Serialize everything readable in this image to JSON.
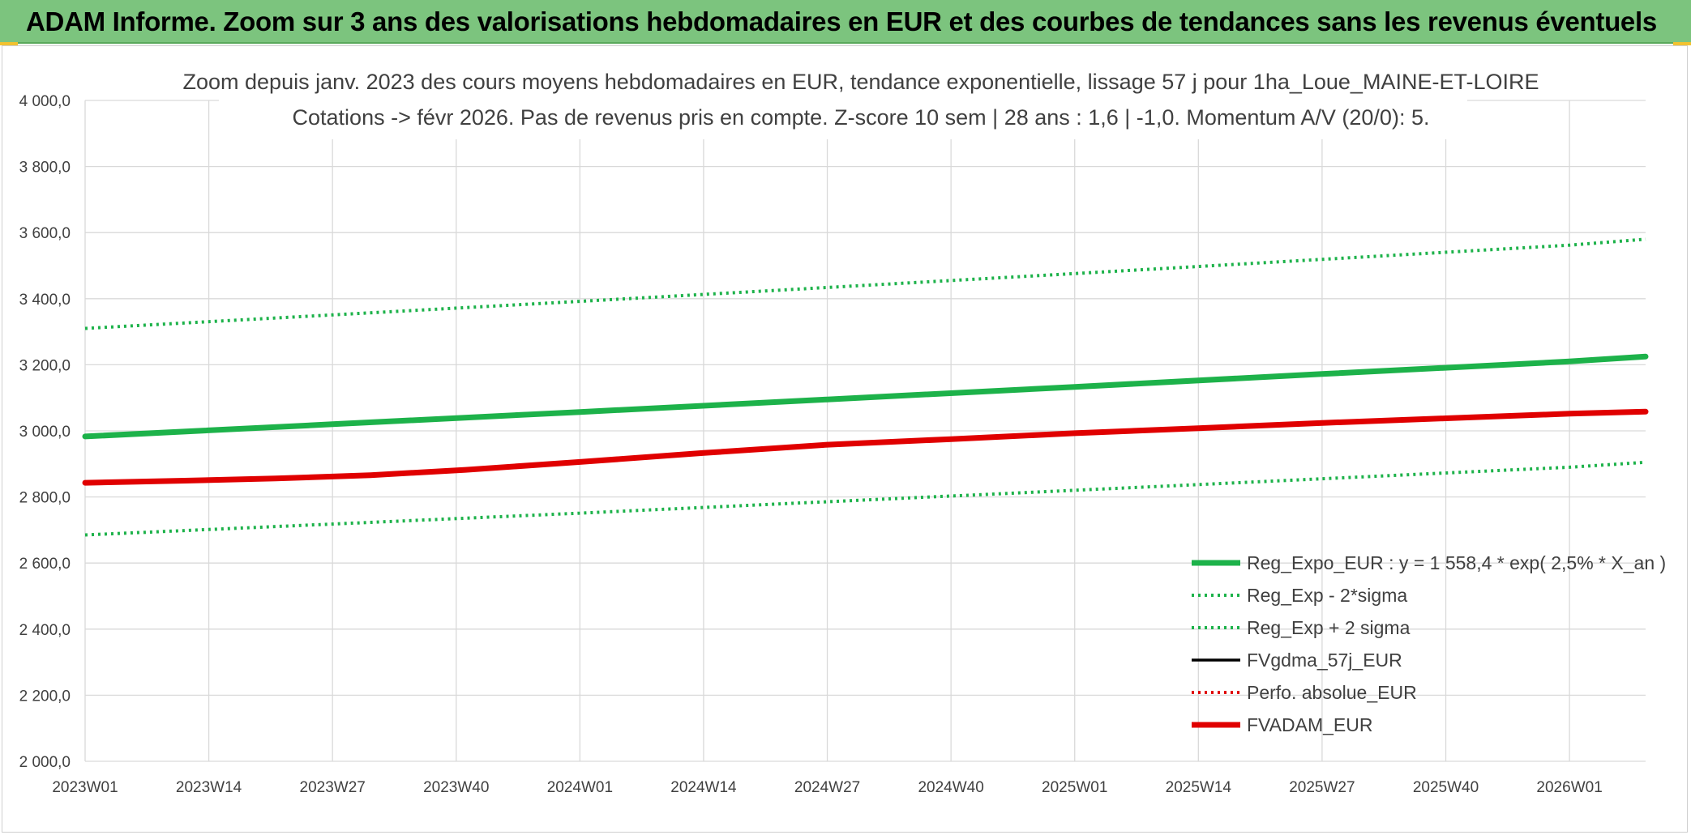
{
  "header": {
    "title": "ADAM Informe. Zoom sur 3 ans des valorisations hebdomadaires en EUR et des courbes de tendances sans les revenus éventuels"
  },
  "chart_data": {
    "type": "line",
    "title": "Zoom depuis janv. 2023 des cours moyens hebdomadaires en EUR, tendance exponentielle, lissage 57 j pour 1ha_Loue_MAINE-ET-LOIRE",
    "subtitle": "Cotations -> févr 2026. Pas de revenus pris en compte. Z-score 10 sem | 28 ans : 1,6 | -1,0. Momentum A/V (20/0): 5.",
    "xlabel": "",
    "ylabel": "",
    "ylim": [
      2000,
      4000
    ],
    "y_ticks": [
      2000,
      2200,
      2400,
      2600,
      2800,
      3000,
      3200,
      3400,
      3600,
      3800,
      4000
    ],
    "y_tick_labels": [
      "2 000,0",
      "2 200,0",
      "2 400,0",
      "2 600,0",
      "2 800,0",
      "3 000,0",
      "3 200,0",
      "3 400,0",
      "3 600,0",
      "3 800,0",
      "4 000,0"
    ],
    "x_tick_labels": [
      "2023W01",
      "2023W14",
      "2023W27",
      "2023W40",
      "2024W01",
      "2024W14",
      "2024W27",
      "2024W40",
      "2025W01",
      "2025W14",
      "2025W27",
      "2025W40",
      "2026W01"
    ],
    "x_tick_week_index": [
      0,
      13,
      26,
      39,
      52,
      65,
      78,
      91,
      104,
      117,
      130,
      143,
      156
    ],
    "x_range_weeks": [
      0,
      164
    ],
    "grid": true,
    "legend_position": "bottom-right",
    "series": [
      {
        "name": "Reg_Expo_EUR : y = 1 558,4 * exp( 2,5% *  X_an )",
        "color": "#1db24a",
        "style": "solid-thick",
        "x": [
          0,
          26,
          52,
          78,
          104,
          130,
          156,
          164
        ],
        "values": [
          2983,
          3020,
          3057,
          3095,
          3133,
          3172,
          3210,
          3225
        ]
      },
      {
        "name": "Reg_Exp - 2*sigma",
        "color": "#1db24a",
        "style": "dotted",
        "x": [
          0,
          52,
          104,
          156,
          164
        ],
        "values": [
          2685,
          2751,
          2820,
          2890,
          2905
        ]
      },
      {
        "name": "Reg_Exp + 2 sigma",
        "color": "#1db24a",
        "style": "dotted",
        "x": [
          0,
          52,
          104,
          156,
          164
        ],
        "values": [
          3310,
          3392,
          3476,
          3562,
          3580
        ]
      },
      {
        "name": "FVgdma_57j_EUR",
        "color": "#000000",
        "style": "solid",
        "x": [
          0,
          10,
          20,
          30,
          40,
          52,
          65,
          78,
          91,
          104,
          117,
          130,
          143,
          156,
          164
        ],
        "values": [
          2843,
          2850,
          2858,
          2866,
          2882,
          2906,
          2933,
          2958,
          2975,
          2993,
          3008,
          3024,
          3038,
          3052,
          3058
        ]
      },
      {
        "name": "Perfo. absolue_EUR",
        "color": "#e00000",
        "style": "dotted",
        "x": [
          0,
          10,
          20,
          30,
          40,
          52,
          65,
          78,
          91,
          104,
          117,
          130,
          143,
          156,
          164
        ],
        "values": [
          2843,
          2849,
          2856,
          2866,
          2882,
          2906,
          2933,
          2958,
          2975,
          2993,
          3008,
          3024,
          3038,
          3052,
          3058
        ]
      },
      {
        "name": "FVADAM_EUR",
        "color": "#e00000",
        "style": "solid-thick",
        "x": [
          0,
          10,
          20,
          30,
          40,
          52,
          65,
          78,
          91,
          104,
          117,
          130,
          143,
          156,
          164
        ],
        "values": [
          2843,
          2849,
          2856,
          2866,
          2882,
          2906,
          2933,
          2958,
          2975,
          2993,
          3008,
          3024,
          3038,
          3052,
          3058
        ]
      }
    ]
  }
}
